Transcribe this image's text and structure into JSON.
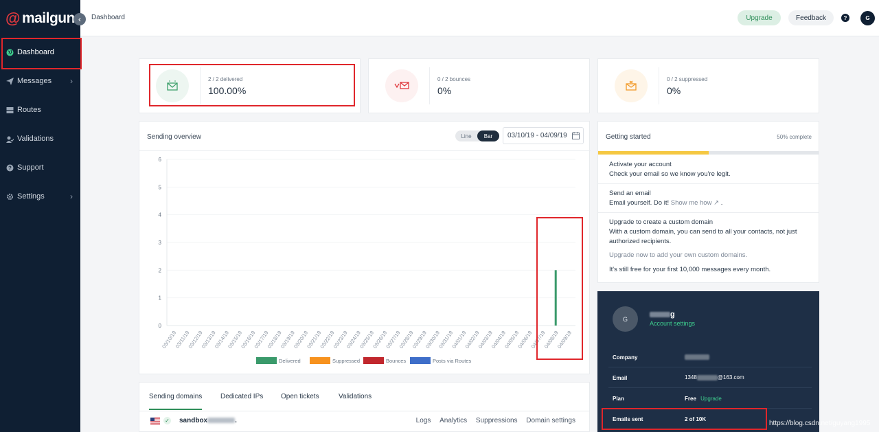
{
  "app": {
    "logo_text": "mailgun",
    "logo_at": "@"
  },
  "sidebar": {
    "collapse_glyph": "‹",
    "items": [
      {
        "label": "Dashboard",
        "icon": "globe-icon",
        "active": true
      },
      {
        "label": "Messages",
        "icon": "send-icon",
        "has_children": true
      },
      {
        "label": "Routes",
        "icon": "routes-icon"
      },
      {
        "label": "Validations",
        "icon": "validation-icon"
      },
      {
        "label": "Support",
        "icon": "help-icon"
      },
      {
        "label": "Settings",
        "icon": "gear-icon",
        "has_children": true
      }
    ]
  },
  "topbar": {
    "breadcrumb": "Dashboard",
    "upgrade_label": "Upgrade",
    "feedback_label": "Feedback",
    "help_glyph": "?",
    "avatar_initial": "G"
  },
  "stats": [
    {
      "label": "2 / 2 delivered",
      "value": "100.00%",
      "icon": "delivered-envelope-icon",
      "color": "#3ea06b"
    },
    {
      "label": "0 / 2 bounces",
      "value": "0%",
      "icon": "bounce-envelope-icon",
      "color": "#e0393e"
    },
    {
      "label": "0 / 2 suppressed",
      "value": "0%",
      "icon": "suppressed-envelope-icon",
      "color": "#f29b2a"
    }
  ],
  "overview": {
    "title": "Sending overview",
    "toggle_line": "Line",
    "toggle_bar": "Bar",
    "date_range": "03/10/19 - 04/09/19"
  },
  "chart_data": {
    "type": "bar",
    "categories": [
      "03/10/19",
      "03/11/19",
      "03/12/19",
      "03/13/19",
      "03/14/19",
      "03/15/19",
      "03/16/19",
      "03/17/19",
      "03/18/19",
      "03/19/19",
      "03/20/19",
      "03/21/19",
      "03/22/19",
      "03/23/19",
      "03/24/19",
      "03/25/19",
      "03/26/19",
      "03/27/19",
      "03/28/19",
      "03/29/19",
      "03/30/19",
      "03/31/19",
      "04/01/19",
      "04/02/19",
      "04/03/19",
      "04/04/19",
      "04/05/19",
      "04/06/19",
      "04/07/19",
      "04/08/19",
      "04/09/19"
    ],
    "series": [
      {
        "name": "Delivered",
        "color": "#3a9a6b",
        "values": [
          0,
          0,
          0,
          0,
          0,
          0,
          0,
          0,
          0,
          0,
          0,
          0,
          0,
          0,
          0,
          0,
          0,
          0,
          0,
          0,
          0,
          0,
          0,
          0,
          0,
          0,
          0,
          0,
          0,
          2,
          0
        ]
      },
      {
        "name": "Suppressed",
        "color": "#f7921e",
        "values": [
          0,
          0,
          0,
          0,
          0,
          0,
          0,
          0,
          0,
          0,
          0,
          0,
          0,
          0,
          0,
          0,
          0,
          0,
          0,
          0,
          0,
          0,
          0,
          0,
          0,
          0,
          0,
          0,
          0,
          0,
          0
        ]
      },
      {
        "name": "Bounces",
        "color": "#c1272d",
        "values": [
          0,
          0,
          0,
          0,
          0,
          0,
          0,
          0,
          0,
          0,
          0,
          0,
          0,
          0,
          0,
          0,
          0,
          0,
          0,
          0,
          0,
          0,
          0,
          0,
          0,
          0,
          0,
          0,
          0,
          0,
          0
        ]
      },
      {
        "name": "Posts via Routes",
        "color": "#3e6ec9",
        "values": [
          0,
          0,
          0,
          0,
          0,
          0,
          0,
          0,
          0,
          0,
          0,
          0,
          0,
          0,
          0,
          0,
          0,
          0,
          0,
          0,
          0,
          0,
          0,
          0,
          0,
          0,
          0,
          0,
          0,
          0,
          0
        ]
      }
    ],
    "yticks": [
      "0",
      "1",
      "2",
      "3",
      "4",
      "5",
      "6"
    ],
    "ylim": [
      0,
      6
    ],
    "legend_position": "bottom"
  },
  "getting_started": {
    "title": "Getting started",
    "percent_label": "50% complete",
    "progress": 0.5,
    "activate_title": "Activate your account",
    "activate_desc": "Check your email so we know you're legit.",
    "send_title": "Send an email",
    "send_desc": "Email yourself. Do it!",
    "send_link": "Show me how",
    "send_end": ".",
    "upgrade_title": "Upgrade to create a custom domain",
    "upgrade_desc": "With a custom domain, you can send to all your contacts, not just authorized recipients.",
    "upgrade_hint": "Upgrade now to add your own custom domains.",
    "free_note": "It's still free for your first 10,000 messages every month."
  },
  "account": {
    "avatar_initial": "G",
    "name_visible": "g",
    "settings_link": "Account settings",
    "company_label": "Company",
    "email_label": "Email",
    "email_prefix": "1348",
    "email_suffix": "@163.com",
    "plan_label": "Plan",
    "plan_value": "Free",
    "plan_upgrade": "Upgrade",
    "emails_sent_label": "Emails sent",
    "emails_sent_value": "2 of 10K"
  },
  "domains": {
    "tabs": [
      "Sending domains",
      "Dedicated IPs",
      "Open tickets",
      "Validations"
    ],
    "domain_name_visible": "sandbox",
    "domain_name_end": ".",
    "links": [
      "Logs",
      "Analytics",
      "Suppressions",
      "Domain settings"
    ]
  },
  "watermark": "https://blog.csdn.net/guyang1995"
}
